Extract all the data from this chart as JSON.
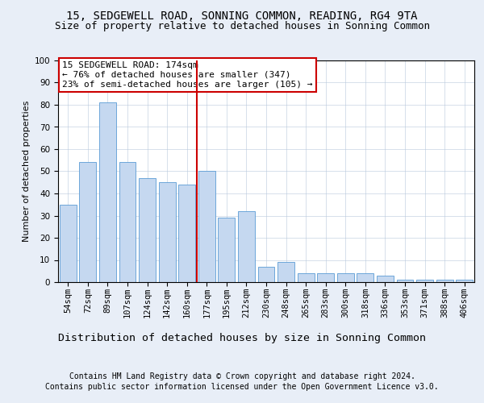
{
  "title_line1": "15, SEDGEWELL ROAD, SONNING COMMON, READING, RG4 9TA",
  "title_line2": "Size of property relative to detached houses in Sonning Common",
  "xlabel": "Distribution of detached houses by size in Sonning Common",
  "ylabel": "Number of detached properties",
  "categories": [
    "54sqm",
    "72sqm",
    "89sqm",
    "107sqm",
    "124sqm",
    "142sqm",
    "160sqm",
    "177sqm",
    "195sqm",
    "212sqm",
    "230sqm",
    "248sqm",
    "265sqm",
    "283sqm",
    "300sqm",
    "318sqm",
    "336sqm",
    "353sqm",
    "371sqm",
    "388sqm",
    "406sqm"
  ],
  "values": [
    35,
    54,
    81,
    54,
    47,
    45,
    44,
    50,
    29,
    32,
    7,
    9,
    4,
    4,
    4,
    4,
    3,
    1,
    1,
    1,
    1
  ],
  "bar_color": "#c5d8f0",
  "bar_edge_color": "#5b9bd5",
  "vline_index": 7,
  "vline_color": "#cc0000",
  "annotation_text": "15 SEDGEWELL ROAD: 174sqm\n← 76% of detached houses are smaller (347)\n23% of semi-detached houses are larger (105) →",
  "annotation_box_edge_color": "#cc0000",
  "ylim": [
    0,
    100
  ],
  "yticks": [
    0,
    10,
    20,
    30,
    40,
    50,
    60,
    70,
    80,
    90,
    100
  ],
  "bg_color": "#e8eef7",
  "plot_bg_color": "#ffffff",
  "footer_line1": "Contains HM Land Registry data © Crown copyright and database right 2024.",
  "footer_line2": "Contains public sector information licensed under the Open Government Licence v3.0.",
  "title_fontsize": 10,
  "subtitle_fontsize": 9,
  "tick_fontsize": 7.5,
  "xlabel_fontsize": 9.5,
  "ylabel_fontsize": 8,
  "footer_fontsize": 7,
  "annotation_fontsize": 8
}
